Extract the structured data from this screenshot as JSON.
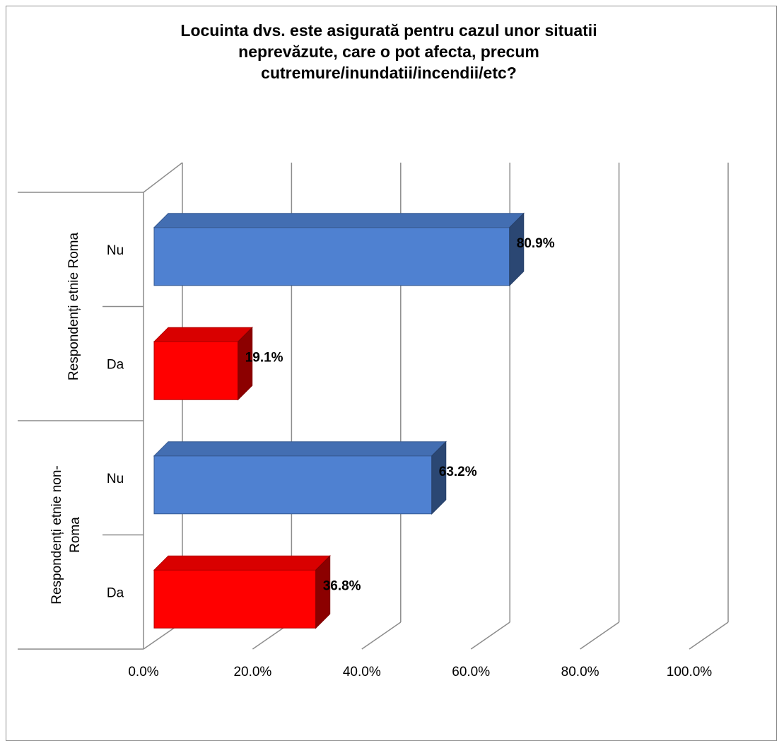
{
  "chart_data": {
    "type": "bar",
    "orientation": "horizontal",
    "title_lines": [
      "Locuinta dvs. este asigurată pentru cazul unor situatii",
      "neprevăzute, care o pot afecta, precum",
      "cutremure/inundatii/incendii/etc?"
    ],
    "groups": [
      {
        "label": "Respondenți etnie Roma",
        "bars": [
          {
            "category": "Nu",
            "value": 80.9,
            "label": "80.9%",
            "color": "#4f81d1"
          },
          {
            "category": "Da",
            "value": 19.1,
            "label": "19.1%",
            "color": "#ff0000"
          }
        ]
      },
      {
        "label_lines": [
          "Respondenți etnie non-",
          "Roma"
        ],
        "bars": [
          {
            "category": "Nu",
            "value": 63.2,
            "label": "63.2%",
            "color": "#4f81d1"
          },
          {
            "category": "Da",
            "value": 36.8,
            "label": "36.8%",
            "color": "#ff0000"
          }
        ]
      }
    ],
    "xlim": [
      0,
      100
    ],
    "x_ticks": [
      "0.0%",
      "20.0%",
      "40.0%",
      "60.0%",
      "80.0%",
      "100.0%"
    ],
    "grid": true
  }
}
